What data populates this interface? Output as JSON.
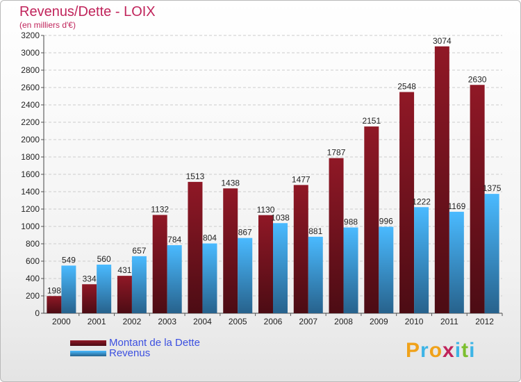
{
  "title": "Revenus/Dette - LOIX",
  "subtitle": "(en milliers d'€)",
  "logo": {
    "letters": [
      "P",
      "r",
      "o",
      "x",
      "i",
      "t",
      "i"
    ],
    "colors": [
      "#f0a21a",
      "#3db4e6",
      "#f0a21a",
      "#c0245b",
      "#3db4e6",
      "#7cbf2e",
      "#3db4e6"
    ]
  },
  "chart_data": {
    "type": "bar",
    "categories": [
      "2000",
      "2001",
      "2002",
      "2003",
      "2004",
      "2005",
      "2006",
      "2007",
      "2008",
      "2009",
      "2010",
      "2011",
      "2012"
    ],
    "series": [
      {
        "name": "Montant de la Dette",
        "color": "#7a1420",
        "values": [
          198,
          334,
          431,
          1132,
          1513,
          1438,
          1130,
          1477,
          1787,
          2151,
          2548,
          3074,
          2630
        ]
      },
      {
        "name": "Revenus",
        "color": "#3f9ee2",
        "values": [
          549,
          560,
          657,
          784,
          804,
          867,
          1038,
          881,
          988,
          996,
          1222,
          1169,
          1375
        ]
      }
    ],
    "ylim": [
      0,
      3200
    ],
    "yticks": [
      "0",
      "200",
      "400",
      "600",
      "800",
      "1000",
      "1200",
      "1400",
      "1600",
      "1800",
      "2000",
      "2200",
      "2400",
      "2600",
      "2800",
      "3000",
      "3200"
    ],
    "grid": true,
    "legend_position": "bottom-left"
  }
}
